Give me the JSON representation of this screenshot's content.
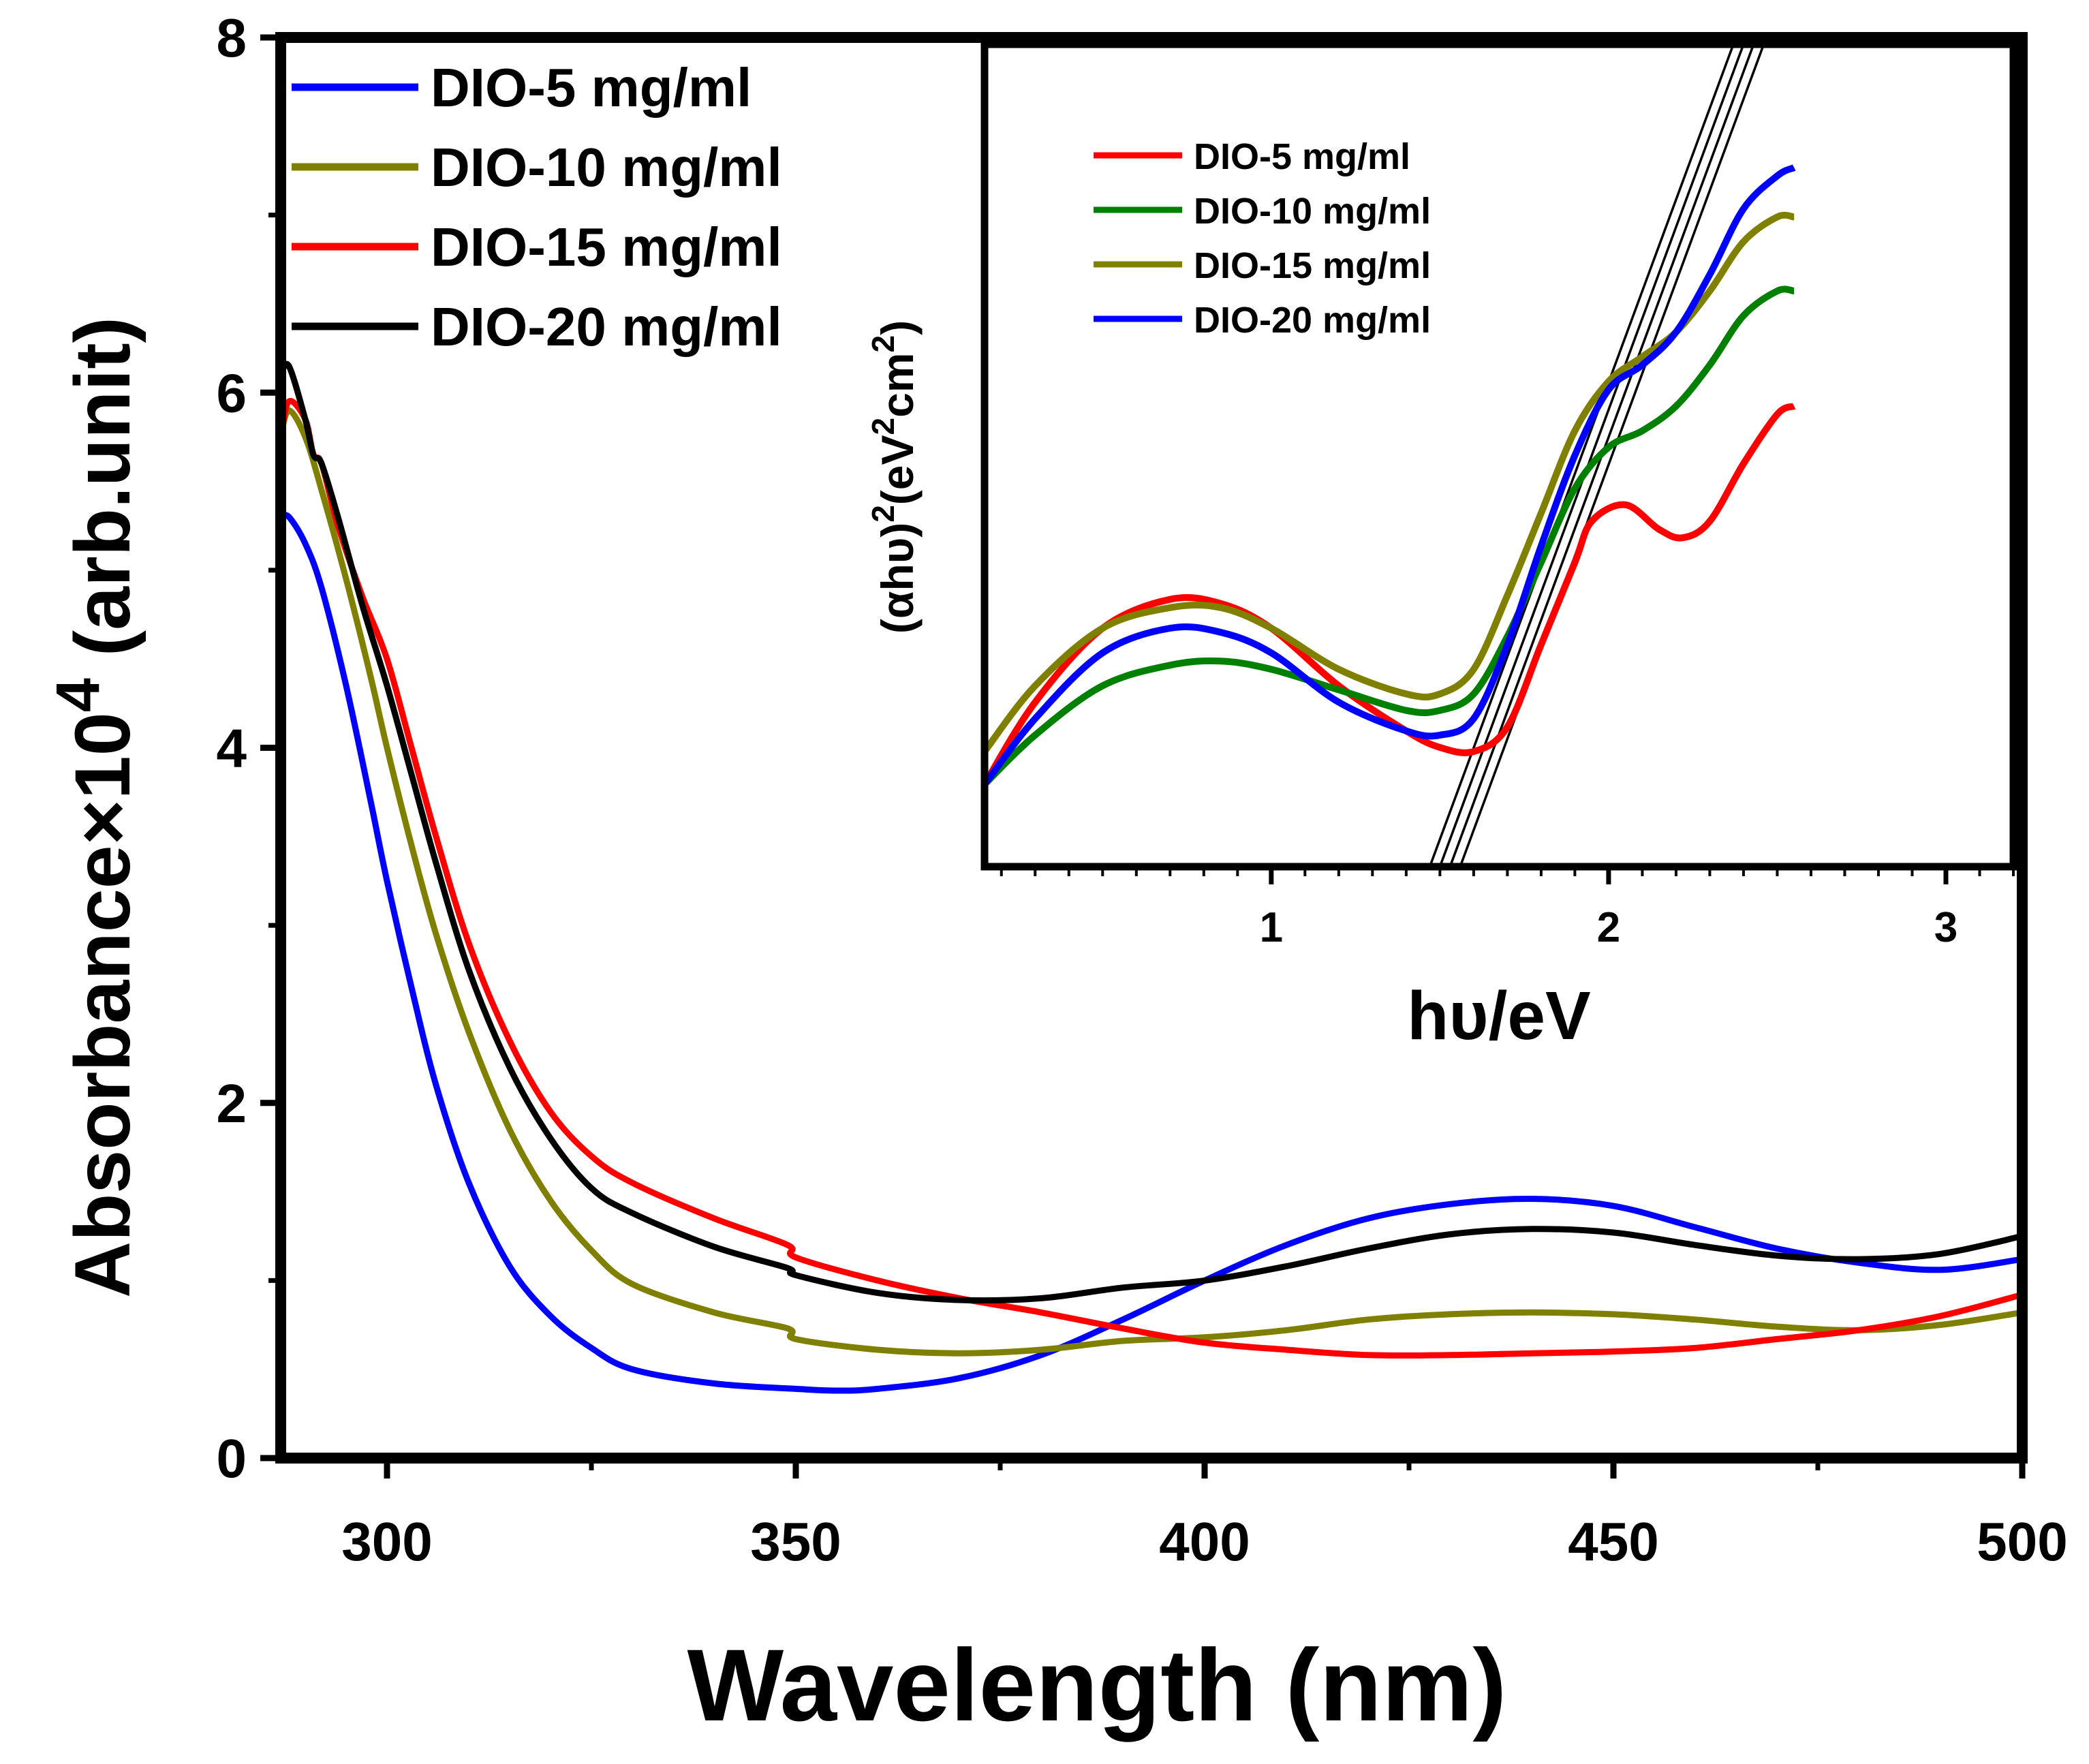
{
  "chart_data": [
    {
      "id": "main",
      "type": "line",
      "title": "",
      "xlabel": "Wavelength (nm)",
      "ylabel_prefix": "Absorbance×10",
      "ylabel_exponent": "4",
      "ylabel_suffix": " (arb.unit)",
      "xlim": [
        287,
        500
      ],
      "ylim": [
        0,
        8
      ],
      "xticks": [
        300,
        350,
        400,
        450,
        500
      ],
      "yticks": [
        0,
        2,
        4,
        6,
        8
      ],
      "xtick_labels": [
        "300",
        "350",
        "400",
        "450",
        "500"
      ],
      "ytick_labels": [
        "0",
        "2",
        "4",
        "6",
        "8"
      ],
      "legend_position": "top-left",
      "series": [
        {
          "name": "DIO-5 mg/ml",
          "color": "#0000ff",
          "points": [
            [
              287,
              5.3
            ],
            [
              288,
              5.3
            ],
            [
              290,
              5.15
            ],
            [
              292,
              4.9
            ],
            [
              295,
              4.35
            ],
            [
              298,
              3.7
            ],
            [
              300,
              3.25
            ],
            [
              303,
              2.65
            ],
            [
              306,
              2.1
            ],
            [
              310,
              1.55
            ],
            [
              315,
              1.08
            ],
            [
              320,
              0.8
            ],
            [
              325,
              0.62
            ],
            [
              330,
              0.5
            ],
            [
              340,
              0.42
            ],
            [
              350,
              0.39
            ],
            [
              355,
              0.38
            ],
            [
              360,
              0.39
            ],
            [
              370,
              0.45
            ],
            [
              380,
              0.58
            ],
            [
              390,
              0.78
            ],
            [
              400,
              1.0
            ],
            [
              410,
              1.2
            ],
            [
              420,
              1.35
            ],
            [
              430,
              1.43
            ],
            [
              440,
              1.46
            ],
            [
              450,
              1.42
            ],
            [
              460,
              1.3
            ],
            [
              470,
              1.18
            ],
            [
              480,
              1.1
            ],
            [
              490,
              1.06
            ],
            [
              500,
              1.12
            ]
          ]
        },
        {
          "name": "DIO-10 mg/ml",
          "color": "#808000",
          "points": [
            [
              287,
              5.75
            ],
            [
              288,
              5.9
            ],
            [
              290,
              5.75
            ],
            [
              292,
              5.45
            ],
            [
              295,
              4.95
            ],
            [
              298,
              4.4
            ],
            [
              300,
              4.0
            ],
            [
              303,
              3.45
            ],
            [
              306,
              2.95
            ],
            [
              310,
              2.4
            ],
            [
              315,
              1.85
            ],
            [
              320,
              1.45
            ],
            [
              325,
              1.17
            ],
            [
              330,
              0.98
            ],
            [
              340,
              0.82
            ],
            [
              349,
              0.73
            ],
            [
              350,
              0.67
            ],
            [
              360,
              0.61
            ],
            [
              370,
              0.59
            ],
            [
              380,
              0.61
            ],
            [
              390,
              0.66
            ],
            [
              400,
              0.68
            ],
            [
              410,
              0.72
            ],
            [
              420,
              0.78
            ],
            [
              430,
              0.81
            ],
            [
              440,
              0.82
            ],
            [
              450,
              0.81
            ],
            [
              460,
              0.78
            ],
            [
              470,
              0.74
            ],
            [
              480,
              0.72
            ],
            [
              490,
              0.75
            ],
            [
              500,
              0.82
            ]
          ]
        },
        {
          "name": "DIO-15 mg/ml",
          "color": "#ff0000",
          "points": [
            [
              287,
              5.75
            ],
            [
              288,
              5.95
            ],
            [
              290,
              5.85
            ],
            [
              291,
              5.65
            ],
            [
              292,
              5.6
            ],
            [
              294,
              5.25
            ],
            [
              297,
              4.85
            ],
            [
              300,
              4.5
            ],
            [
              303,
              4.0
            ],
            [
              306,
              3.5
            ],
            [
              310,
              2.9
            ],
            [
              315,
              2.35
            ],
            [
              320,
              1.95
            ],
            [
              325,
              1.7
            ],
            [
              330,
              1.55
            ],
            [
              340,
              1.35
            ],
            [
              349,
              1.2
            ],
            [
              350,
              1.13
            ],
            [
              360,
              1.0
            ],
            [
              370,
              0.9
            ],
            [
              380,
              0.82
            ],
            [
              390,
              0.73
            ],
            [
              400,
              0.65
            ],
            [
              410,
              0.61
            ],
            [
              420,
              0.58
            ],
            [
              430,
              0.58
            ],
            [
              440,
              0.59
            ],
            [
              450,
              0.6
            ],
            [
              460,
              0.62
            ],
            [
              470,
              0.67
            ],
            [
              480,
              0.72
            ],
            [
              490,
              0.8
            ],
            [
              500,
              0.92
            ]
          ]
        },
        {
          "name": "DIO-20 mg/ml",
          "color": "#000000",
          "points": [
            [
              287,
              6.1
            ],
            [
              288,
              6.15
            ],
            [
              290,
              5.85
            ],
            [
              291,
              5.65
            ],
            [
              292,
              5.6
            ],
            [
              294,
              5.3
            ],
            [
              297,
              4.8
            ],
            [
              300,
              4.35
            ],
            [
              303,
              3.85
            ],
            [
              306,
              3.35
            ],
            [
              310,
              2.75
            ],
            [
              315,
              2.2
            ],
            [
              320,
              1.8
            ],
            [
              325,
              1.52
            ],
            [
              330,
              1.38
            ],
            [
              340,
              1.19
            ],
            [
              349,
              1.07
            ],
            [
              350,
              1.03
            ],
            [
              360,
              0.93
            ],
            [
              370,
              0.89
            ],
            [
              380,
              0.9
            ],
            [
              390,
              0.96
            ],
            [
              400,
              1.0
            ],
            [
              410,
              1.08
            ],
            [
              420,
              1.18
            ],
            [
              430,
              1.26
            ],
            [
              440,
              1.29
            ],
            [
              450,
              1.27
            ],
            [
              460,
              1.2
            ],
            [
              470,
              1.14
            ],
            [
              480,
              1.12
            ],
            [
              490,
              1.15
            ],
            [
              500,
              1.25
            ]
          ]
        }
      ]
    },
    {
      "id": "inset",
      "type": "line",
      "title": "",
      "xlabel": "hυ/eV",
      "ylabel_prefix": "(αhυ)",
      "ylabel_exp1": "2",
      "ylabel_mid": "(eV",
      "ylabel_exp2": "2",
      "ylabel_mid2": "cm",
      "ylabel_exp3": "2",
      "ylabel_suffix": ")",
      "xlim": [
        0.15,
        3.2
      ],
      "ylim": [
        0,
        1
      ],
      "xticks": [
        1,
        2,
        3
      ],
      "xtick_labels": [
        "1",
        "2",
        "3"
      ],
      "legend_position": "top-left",
      "series": [
        {
          "name": "DIO-5 mg/ml",
          "color": "#ff0000",
          "points": [
            [
              0.15,
              0.1
            ],
            [
              0.3,
              0.2
            ],
            [
              0.5,
              0.29
            ],
            [
              0.7,
              0.325
            ],
            [
              0.85,
              0.32
            ],
            [
              1.0,
              0.29
            ],
            [
              1.2,
              0.22
            ],
            [
              1.4,
              0.165
            ],
            [
              1.5,
              0.145
            ],
            [
              1.6,
              0.14
            ],
            [
              1.7,
              0.17
            ],
            [
              1.8,
              0.27
            ],
            [
              1.9,
              0.37
            ],
            [
              1.95,
              0.42
            ],
            [
              2.05,
              0.44
            ],
            [
              2.15,
              0.41
            ],
            [
              2.22,
              0.4
            ],
            [
              2.3,
              0.42
            ],
            [
              2.4,
              0.49
            ],
            [
              2.5,
              0.55
            ],
            [
              2.55,
              0.56
            ]
          ]
        },
        {
          "name": "DIO-10 mg/ml",
          "color": "#008000",
          "points": [
            [
              0.15,
              0.1
            ],
            [
              0.3,
              0.16
            ],
            [
              0.5,
              0.22
            ],
            [
              0.7,
              0.245
            ],
            [
              0.85,
              0.25
            ],
            [
              1.0,
              0.24
            ],
            [
              1.2,
              0.215
            ],
            [
              1.4,
              0.19
            ],
            [
              1.5,
              0.19
            ],
            [
              1.6,
              0.21
            ],
            [
              1.7,
              0.28
            ],
            [
              1.8,
              0.37
            ],
            [
              1.9,
              0.46
            ],
            [
              2.0,
              0.51
            ],
            [
              2.1,
              0.53
            ],
            [
              2.2,
              0.56
            ],
            [
              2.3,
              0.61
            ],
            [
              2.4,
              0.67
            ],
            [
              2.5,
              0.7
            ],
            [
              2.55,
              0.7
            ]
          ]
        },
        {
          "name": "DIO-15 mg/ml",
          "color": "#808000",
          "points": [
            [
              0.15,
              0.14
            ],
            [
              0.3,
              0.22
            ],
            [
              0.5,
              0.29
            ],
            [
              0.7,
              0.315
            ],
            [
              0.85,
              0.315
            ],
            [
              1.0,
              0.29
            ],
            [
              1.2,
              0.24
            ],
            [
              1.4,
              0.21
            ],
            [
              1.5,
              0.21
            ],
            [
              1.6,
              0.24
            ],
            [
              1.7,
              0.33
            ],
            [
              1.8,
              0.43
            ],
            [
              1.9,
              0.53
            ],
            [
              2.0,
              0.59
            ],
            [
              2.1,
              0.62
            ],
            [
              2.2,
              0.65
            ],
            [
              2.3,
              0.7
            ],
            [
              2.4,
              0.76
            ],
            [
              2.5,
              0.79
            ],
            [
              2.55,
              0.79
            ]
          ]
        },
        {
          "name": "DIO-20 mg/ml",
          "color": "#0000ff",
          "points": [
            [
              0.15,
              0.1
            ],
            [
              0.3,
              0.18
            ],
            [
              0.5,
              0.26
            ],
            [
              0.7,
              0.29
            ],
            [
              0.85,
              0.285
            ],
            [
              1.0,
              0.26
            ],
            [
              1.2,
              0.2
            ],
            [
              1.4,
              0.165
            ],
            [
              1.5,
              0.16
            ],
            [
              1.6,
              0.18
            ],
            [
              1.7,
              0.27
            ],
            [
              1.8,
              0.39
            ],
            [
              1.9,
              0.5
            ],
            [
              2.0,
              0.58
            ],
            [
              2.1,
              0.61
            ],
            [
              2.2,
              0.65
            ],
            [
              2.3,
              0.72
            ],
            [
              2.4,
              0.8
            ],
            [
              2.5,
              0.84
            ],
            [
              2.55,
              0.85
            ]
          ]
        }
      ],
      "tangent_lines": [
        {
          "x_intercept": 1.47,
          "x_top": 2.37
        },
        {
          "x_intercept": 1.5,
          "x_top": 2.4
        },
        {
          "x_intercept": 1.53,
          "x_top": 2.43
        },
        {
          "x_intercept": 1.56,
          "x_top": 2.46
        }
      ]
    }
  ]
}
